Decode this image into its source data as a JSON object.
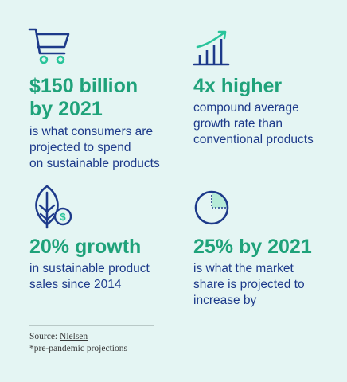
{
  "stats": [
    {
      "icon": "shopping-cart-icon",
      "headline_lines": [
        "$150 billion",
        "by 2021"
      ],
      "description_lines": [
        "is what consumers are",
        "projected to spend",
        "on sustainable products"
      ]
    },
    {
      "icon": "growth-bar-chart-icon",
      "headline_lines": [
        "4x higher"
      ],
      "description_lines": [
        "compound average",
        "growth rate than",
        "conventional products"
      ]
    },
    {
      "icon": "leaf-dollar-icon",
      "headline_lines": [
        "20% growth"
      ],
      "description_lines": [
        "in sustainable product",
        "sales since 2014"
      ]
    },
    {
      "icon": "pie-quarter-icon",
      "headline_lines": [
        "25% by 2021"
      ],
      "description_lines": [
        "is what the market",
        "share is projected to",
        "increase by"
      ]
    }
  ],
  "footer": {
    "source_prefix": "Source: ",
    "source_name": "Nielsen",
    "note": "*pre-pandemic projections"
  },
  "colors": {
    "background": "#e4f5f3",
    "headline": "#1fa27a",
    "text_and_icons": "#1d3a8a",
    "accent": "#28c49a"
  }
}
